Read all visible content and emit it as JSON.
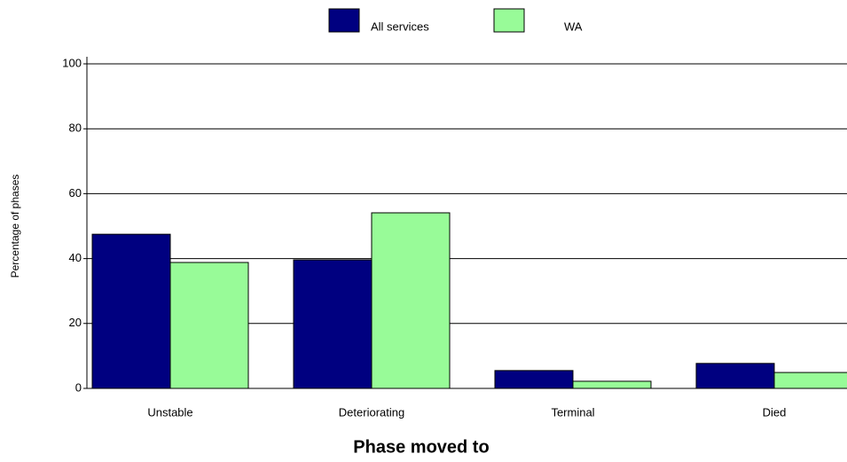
{
  "chart_data": {
    "type": "bar",
    "x_label": "Phase moved to",
    "y_label": "Percentage of phases",
    "categories": [
      "Unstable",
      "Deteriorating",
      "Terminal",
      "Died"
    ],
    "series": [
      {
        "name": "All services",
        "color": "#000080",
        "values": [
          47.5,
          39.6,
          5.5,
          7.7
        ]
      },
      {
        "name": "WA",
        "color": "#98fb98",
        "values": [
          38.8,
          54.1,
          2.2,
          4.9
        ]
      }
    ],
    "ylim": [
      0,
      100
    ],
    "yticks": [
      0,
      20,
      40,
      60,
      80,
      100
    ],
    "grid": true,
    "legend": "top"
  }
}
